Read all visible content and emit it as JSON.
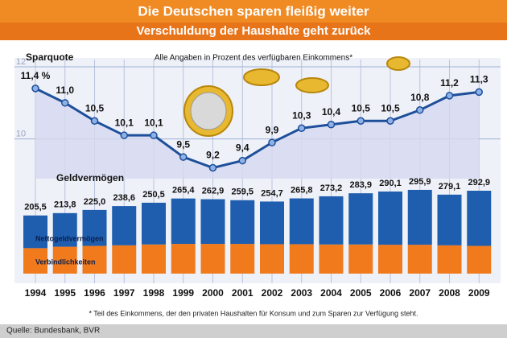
{
  "header": {
    "title": "Die Deutschen sparen fleißig weiter",
    "subtitle": "Verschuldung der Haushalte geht zurück"
  },
  "footnote": "* Teil des Einkommens, der den privaten Haushalten für Konsum und zum Sparen zur Verfügung steht.",
  "source": "Quelle: Bundesbank, BVR",
  "chart_data": [
    {
      "type": "line",
      "title": "Sparquote",
      "subtitle": "Alle Angaben in Prozent des verfügbaren Einkommens*",
      "categories": [
        "1994",
        "1995",
        "1996",
        "1997",
        "1998",
        "1999",
        "2000",
        "2001",
        "2002",
        "2003",
        "2004",
        "2005",
        "2006",
        "2007",
        "2008",
        "2009"
      ],
      "values": [
        11.4,
        11.0,
        10.5,
        10.1,
        10.1,
        9.5,
        9.2,
        9.4,
        9.9,
        10.3,
        10.4,
        10.5,
        10.5,
        10.8,
        11.2,
        11.3
      ],
      "value_labels": [
        "11,4 %",
        "11,0",
        "10,5",
        "10,1",
        "10,1",
        "9,5",
        "9,2",
        "9,4",
        "9,9",
        "10,3",
        "10,4",
        "10,5",
        "10,5",
        "10,8",
        "11,2",
        "11,3"
      ],
      "color": "#1d4f9a",
      "ylim": [
        8.9,
        12.2
      ],
      "yticks": [
        10,
        12
      ],
      "grid": true
    },
    {
      "type": "stacked-bar",
      "title": "Geldvermögen",
      "series": [
        {
          "name": "Verbindlichkeiten",
          "color": "#f07a1c",
          "values": [
            90,
            95,
            98,
            100,
            103,
            105,
            105,
            105,
            104,
            104,
            103,
            103,
            102,
            102,
            100,
            98
          ]
        },
        {
          "name": "Nettogeldvermögen",
          "color": "#1f5dae",
          "values": [
            115.5,
            118.8,
            127,
            138.6,
            147.5,
            160.4,
            157.9,
            154.5,
            150.7,
            161.8,
            170.2,
            180.9,
            188.1,
            193.9,
            179.1,
            194.9
          ]
        }
      ],
      "total_labels": [
        "205,5",
        "213,8",
        "225,0",
        "238,6",
        "250,5",
        "265,4",
        "262,9",
        "259,5",
        "254,7",
        "265,8",
        "273,2",
        "283,9",
        "290,1",
        "295,9",
        "279,1",
        "292,9"
      ],
      "ylim": [
        0,
        300
      ]
    }
  ]
}
